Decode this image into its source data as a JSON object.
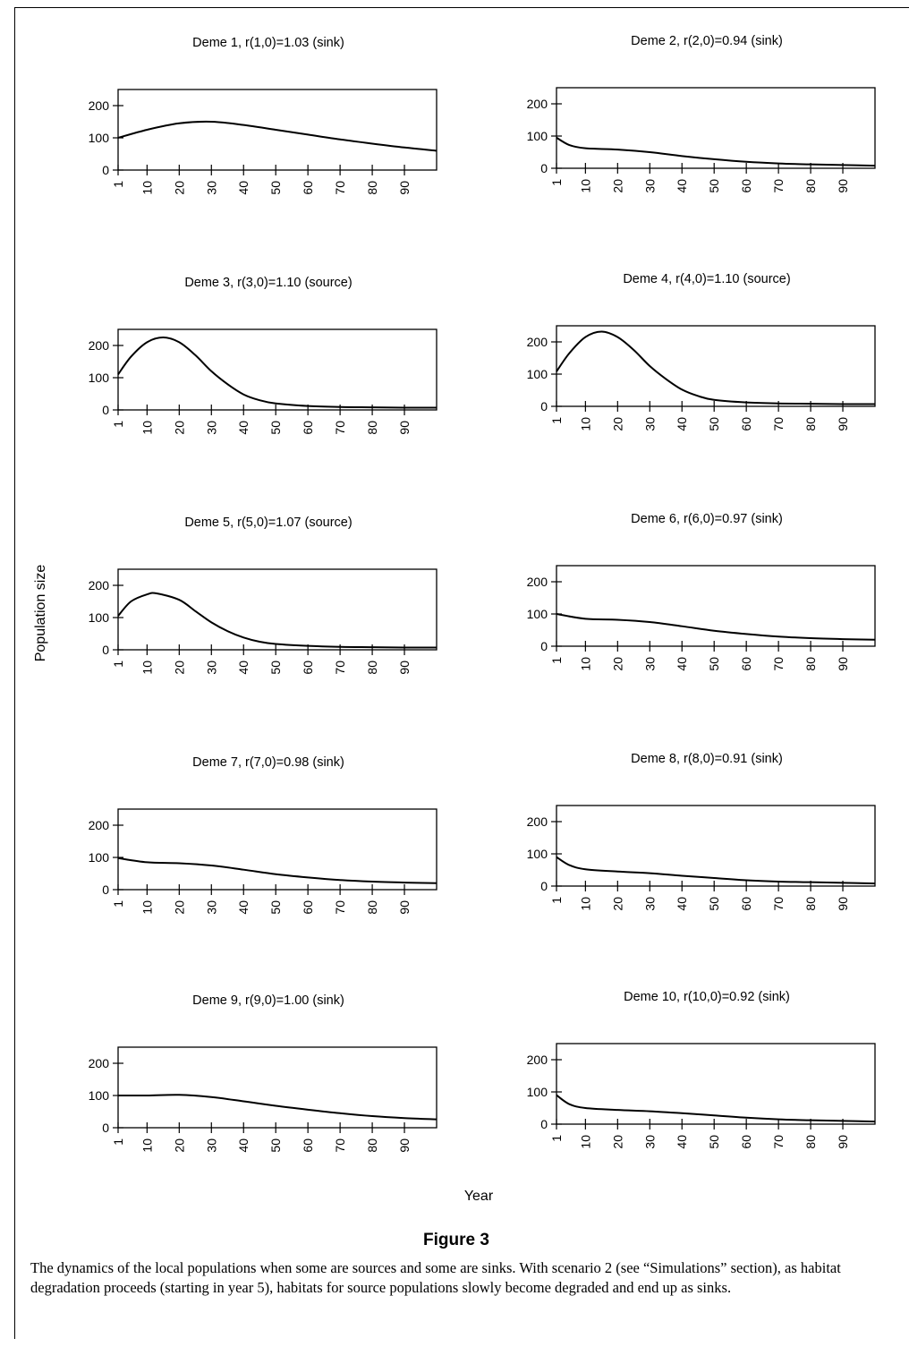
{
  "figure": {
    "y_axis_label": "Population size",
    "x_axis_label": "Year",
    "figure_title": "Figure 3",
    "caption": "The dynamics of the local populations when some are sources and some are sinks. With scenario 2 (see “Simulations” section), as habitat degradation proceeds (starting in year 5), habitats for source populations slowly become degraded and end up as sinks."
  },
  "chart_data": [
    {
      "type": "line",
      "title": "Deme 1, r(1,0)=1.03 (sink)",
      "xlabel": "",
      "ylabel": "",
      "x_ticks": [
        "1",
        "10",
        "20",
        "30",
        "40",
        "50",
        "60",
        "70",
        "80",
        "90"
      ],
      "y_ticks": [
        0,
        100,
        200
      ],
      "xlim": [
        1,
        100
      ],
      "ylim": [
        0,
        250
      ],
      "grid": false,
      "x": [
        1,
        10,
        20,
        30,
        40,
        50,
        60,
        70,
        80,
        90,
        100
      ],
      "y": [
        100,
        125,
        145,
        150,
        140,
        125,
        110,
        95,
        82,
        70,
        60
      ]
    },
    {
      "type": "line",
      "title": "Deme 2, r(2,0)=0.94 (sink)",
      "xlabel": "",
      "ylabel": "",
      "x_ticks": [
        "1",
        "10",
        "20",
        "30",
        "40",
        "50",
        "60",
        "70",
        "80",
        "90"
      ],
      "y_ticks": [
        0,
        100,
        200
      ],
      "xlim": [
        1,
        100
      ],
      "ylim": [
        0,
        250
      ],
      "grid": false,
      "x": [
        1,
        5,
        10,
        20,
        30,
        40,
        50,
        60,
        70,
        80,
        90,
        100
      ],
      "y": [
        95,
        72,
        62,
        58,
        50,
        38,
        28,
        20,
        15,
        12,
        10,
        8
      ]
    },
    {
      "type": "line",
      "title": "Deme 3, r(3,0)=1.10 (source)",
      "xlabel": "",
      "ylabel": "",
      "x_ticks": [
        "1",
        "10",
        "20",
        "30",
        "40",
        "50",
        "60",
        "70",
        "80",
        "90"
      ],
      "y_ticks": [
        0,
        100,
        200
      ],
      "xlim": [
        1,
        100
      ],
      "ylim": [
        0,
        250
      ],
      "grid": false,
      "x": [
        1,
        5,
        10,
        15,
        20,
        25,
        30,
        35,
        40,
        45,
        50,
        60,
        70,
        80,
        90,
        100
      ],
      "y": [
        110,
        165,
        210,
        225,
        210,
        170,
        120,
        80,
        48,
        30,
        20,
        12,
        9,
        8,
        7,
        7
      ]
    },
    {
      "type": "line",
      "title": "Deme 4, r(4,0)=1.10 (source)",
      "xlabel": "",
      "ylabel": "",
      "x_ticks": [
        "1",
        "10",
        "20",
        "30",
        "40",
        "50",
        "60",
        "70",
        "80",
        "90"
      ],
      "y_ticks": [
        0,
        100,
        200
      ],
      "xlim": [
        1,
        100
      ],
      "ylim": [
        0,
        250
      ],
      "grid": false,
      "x": [
        1,
        5,
        10,
        15,
        20,
        25,
        30,
        35,
        40,
        45,
        50,
        60,
        70,
        80,
        90,
        100
      ],
      "y": [
        108,
        165,
        215,
        232,
        215,
        175,
        125,
        85,
        52,
        32,
        20,
        12,
        9,
        8,
        7,
        7
      ]
    },
    {
      "type": "line",
      "title": "Deme 5, r(5,0)=1.07 (source)",
      "xlabel": "",
      "ylabel": "",
      "x_ticks": [
        "1",
        "10",
        "20",
        "30",
        "40",
        "50",
        "60",
        "70",
        "80",
        "90"
      ],
      "y_ticks": [
        0,
        100,
        200
      ],
      "xlim": [
        1,
        100
      ],
      "ylim": [
        0,
        250
      ],
      "grid": false,
      "x": [
        1,
        5,
        10,
        13,
        20,
        25,
        30,
        35,
        40,
        45,
        50,
        60,
        70,
        80,
        90,
        100
      ],
      "y": [
        105,
        150,
        172,
        175,
        155,
        120,
        85,
        58,
        38,
        25,
        18,
        12,
        9,
        8,
        7,
        7
      ]
    },
    {
      "type": "line",
      "title": "Deme 6, r(6,0)=0.97 (sink)",
      "xlabel": "",
      "ylabel": "",
      "x_ticks": [
        "1",
        "10",
        "20",
        "30",
        "40",
        "50",
        "60",
        "70",
        "80",
        "90"
      ],
      "y_ticks": [
        0,
        100,
        200
      ],
      "xlim": [
        1,
        100
      ],
      "ylim": [
        0,
        250
      ],
      "grid": false,
      "x": [
        1,
        10,
        20,
        30,
        40,
        50,
        60,
        70,
        80,
        90,
        100
      ],
      "y": [
        100,
        85,
        82,
        75,
        62,
        48,
        38,
        30,
        25,
        22,
        20
      ]
    },
    {
      "type": "line",
      "title": "Deme 7, r(7,0)=0.98 (sink)",
      "xlabel": "",
      "ylabel": "",
      "x_ticks": [
        "1",
        "10",
        "20",
        "30",
        "40",
        "50",
        "60",
        "70",
        "80",
        "90"
      ],
      "y_ticks": [
        0,
        100,
        200
      ],
      "xlim": [
        1,
        100
      ],
      "ylim": [
        0,
        250
      ],
      "grid": false,
      "x": [
        1,
        10,
        20,
        30,
        40,
        50,
        60,
        70,
        80,
        90,
        100
      ],
      "y": [
        98,
        85,
        82,
        75,
        62,
        48,
        38,
        30,
        25,
        22,
        20
      ]
    },
    {
      "type": "line",
      "title": "Deme 8, r(8,0)=0.91 (sink)",
      "xlabel": "",
      "ylabel": "",
      "x_ticks": [
        "1",
        "10",
        "20",
        "30",
        "40",
        "50",
        "60",
        "70",
        "80",
        "90"
      ],
      "y_ticks": [
        0,
        100,
        200
      ],
      "xlim": [
        1,
        100
      ],
      "ylim": [
        0,
        250
      ],
      "grid": false,
      "x": [
        1,
        5,
        10,
        20,
        30,
        40,
        50,
        60,
        70,
        80,
        90,
        100
      ],
      "y": [
        90,
        65,
        52,
        45,
        40,
        32,
        25,
        18,
        14,
        12,
        10,
        8
      ]
    },
    {
      "type": "line",
      "title": "Deme 9, r(9,0)=1.00 (sink)",
      "xlabel": "",
      "ylabel": "",
      "x_ticks": [
        "1",
        "10",
        "20",
        "30",
        "40",
        "50",
        "60",
        "70",
        "80",
        "90"
      ],
      "y_ticks": [
        0,
        100,
        200
      ],
      "xlim": [
        1,
        100
      ],
      "ylim": [
        0,
        250
      ],
      "grid": false,
      "x": [
        1,
        10,
        20,
        30,
        40,
        50,
        60,
        70,
        80,
        90,
        100
      ],
      "y": [
        100,
        100,
        102,
        95,
        82,
        68,
        56,
        45,
        36,
        30,
        26
      ]
    },
    {
      "type": "line",
      "title": "Deme 10, r(10,0)=0.92 (sink)",
      "xlabel": "",
      "ylabel": "",
      "x_ticks": [
        "1",
        "10",
        "20",
        "30",
        "40",
        "50",
        "60",
        "70",
        "80",
        "90"
      ],
      "y_ticks": [
        0,
        100,
        200
      ],
      "xlim": [
        1,
        100
      ],
      "ylim": [
        0,
        250
      ],
      "grid": false,
      "x": [
        1,
        5,
        10,
        20,
        30,
        40,
        50,
        60,
        70,
        80,
        90,
        100
      ],
      "y": [
        90,
        62,
        50,
        44,
        40,
        34,
        27,
        20,
        15,
        12,
        10,
        8
      ]
    }
  ]
}
